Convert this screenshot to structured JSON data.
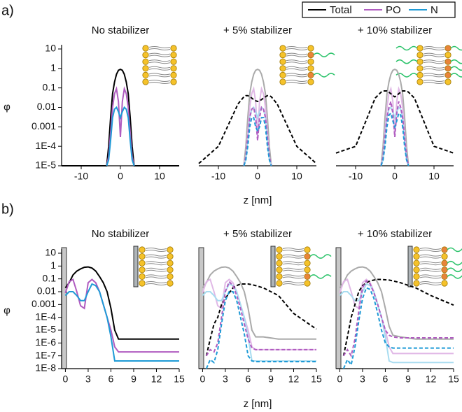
{
  "chart_data": [
    {
      "type": "line",
      "panel_label": "a)",
      "title": "No stabilizer",
      "ylabel": "φ",
      "log_y": true,
      "xlim": [
        -15,
        15
      ],
      "xticks": [
        -10,
        0,
        10
      ],
      "ylim": [
        1e-05,
        10
      ],
      "yticks": [
        10,
        1,
        0.1,
        0.01,
        0.001,
        {
          "value": 0.0001,
          "label": "1E-4"
        },
        {
          "value": 1e-05,
          "label": "1E-5"
        }
      ],
      "x": [
        -15,
        -10,
        -5,
        -3.5,
        -3,
        -2.5,
        -2,
        -1.5,
        -1,
        -0.5,
        0,
        0.5,
        1,
        1.5,
        2,
        2.5,
        3,
        3.5,
        5,
        10,
        15
      ],
      "series": [
        {
          "name": "Total",
          "color": "#000000",
          "dash": false,
          "values": [
            1e-05,
            1e-05,
            1e-05,
            1e-05,
            0.0001,
            0.003,
            0.05,
            0.2,
            0.5,
            0.8,
            0.9,
            0.8,
            0.5,
            0.2,
            0.05,
            0.003,
            0.0001,
            1e-05,
            1e-05,
            1e-05,
            1e-05
          ]
        },
        {
          "name": "PO",
          "color": "#b05cc0",
          "dash": false,
          "values": [
            null,
            null,
            null,
            1e-05,
            3e-05,
            0.0005,
            0.01,
            0.05,
            0.09,
            0.02,
            0.0003,
            0.02,
            0.09,
            0.05,
            0.01,
            0.0005,
            3e-05,
            1e-05,
            null,
            null,
            null
          ]
        },
        {
          "name": "N",
          "color": "#1e9ad6",
          "dash": false,
          "values": [
            null,
            null,
            null,
            1e-05,
            2e-05,
            0.0002,
            0.003,
            0.008,
            0.01,
            0.006,
            0.003,
            0.006,
            0.01,
            0.008,
            0.003,
            0.0002,
            2e-05,
            1e-05,
            null,
            null,
            null
          ]
        }
      ]
    },
    {
      "type": "line",
      "title": "+ 5% stabilizer",
      "xlabel": "z [nm]",
      "log_y": true,
      "xlim": [
        -15,
        15
      ],
      "xticks": [
        -10,
        0,
        10
      ],
      "ylim": [
        1e-05,
        10
      ],
      "x": [
        -15,
        -10,
        -5,
        -3.5,
        -3,
        -2.5,
        -2,
        -1.5,
        -1,
        -0.5,
        0,
        0.5,
        1,
        1.5,
        2,
        2.5,
        3,
        3.5,
        5,
        10,
        15
      ],
      "series": [
        {
          "color": "#aaaaaa",
          "dash": false,
          "values": [
            null,
            null,
            null,
            1e-05,
            0.0001,
            0.003,
            0.05,
            0.2,
            0.5,
            0.8,
            0.9,
            0.8,
            0.5,
            0.2,
            0.05,
            0.003,
            0.0001,
            1e-05,
            null,
            null,
            null
          ]
        },
        {
          "color": "#e0b8e6",
          "dash": false,
          "values": [
            null,
            null,
            null,
            1e-05,
            3e-05,
            0.0005,
            0.01,
            0.05,
            0.09,
            0.02,
            0.0003,
            0.02,
            0.09,
            0.05,
            0.01,
            0.0005,
            3e-05,
            1e-05,
            null,
            null,
            null
          ]
        },
        {
          "color": "#a8dcf0",
          "dash": false,
          "values": [
            null,
            null,
            null,
            1e-05,
            2e-05,
            0.0002,
            0.003,
            0.008,
            0.01,
            0.006,
            0.003,
            0.006,
            0.01,
            0.008,
            0.003,
            0.0002,
            2e-05,
            1e-05,
            null,
            null,
            null
          ]
        },
        {
          "color": "#000000",
          "dash": true,
          "values": [
            1.3e-05,
            0.0001,
            0.015,
            0.035,
            0.04,
            0.04,
            0.035,
            0.03,
            0.025,
            0.022,
            0.02,
            0.022,
            0.025,
            0.03,
            0.035,
            0.04,
            0.04,
            0.035,
            0.015,
            0.0001,
            1.3e-05
          ]
        },
        {
          "color": "#b05cc0",
          "dash": true,
          "values": [
            null,
            null,
            null,
            1e-05,
            3e-05,
            0.0003,
            0.003,
            0.008,
            0.01,
            0.003,
            0.0002,
            0.003,
            0.01,
            0.008,
            0.003,
            0.0003,
            3e-05,
            1e-05,
            null,
            null,
            null
          ]
        },
        {
          "color": "#1e9ad6",
          "dash": true,
          "values": [
            null,
            null,
            null,
            1e-05,
            2e-05,
            0.0001,
            0.001,
            0.003,
            0.003,
            0.001,
            0.0006,
            0.001,
            0.003,
            0.003,
            0.001,
            0.0001,
            2e-05,
            1e-05,
            null,
            null,
            null
          ]
        }
      ]
    },
    {
      "type": "line",
      "title": "+ 10% stabilizer",
      "log_y": true,
      "xlim": [
        -15,
        15
      ],
      "xticks": [
        -10,
        0,
        10
      ],
      "ylim": [
        1e-05,
        10
      ],
      "x": [
        -15,
        -10,
        -5,
        -3.5,
        -3,
        -2.5,
        -2,
        -1.5,
        -1,
        -0.5,
        0,
        0.5,
        1,
        1.5,
        2,
        2.5,
        3,
        3.5,
        5,
        10,
        15
      ],
      "series": [
        {
          "color": "#aaaaaa",
          "dash": false,
          "values": [
            null,
            null,
            null,
            1e-05,
            0.0001,
            0.003,
            0.05,
            0.2,
            0.5,
            0.8,
            0.9,
            0.8,
            0.5,
            0.2,
            0.05,
            0.003,
            0.0001,
            1e-05,
            null,
            null,
            null
          ]
        },
        {
          "color": "#e0b8e6",
          "dash": false,
          "values": [
            null,
            null,
            null,
            1e-05,
            3e-05,
            0.0005,
            0.01,
            0.05,
            0.09,
            0.02,
            0.0003,
            0.02,
            0.09,
            0.05,
            0.01,
            0.0005,
            3e-05,
            1e-05,
            null,
            null,
            null
          ]
        },
        {
          "color": "#a8dcf0",
          "dash": false,
          "values": [
            null,
            null,
            null,
            1e-05,
            2e-05,
            0.0002,
            0.003,
            0.008,
            0.01,
            0.006,
            0.003,
            0.006,
            0.01,
            0.008,
            0.003,
            0.0002,
            2e-05,
            1e-05,
            null,
            null,
            null
          ]
        },
        {
          "color": "#000000",
          "dash": true,
          "values": [
            4.5e-05,
            0.0001,
            0.03,
            0.06,
            0.07,
            0.07,
            0.07,
            0.06,
            0.05,
            0.04,
            0.035,
            0.04,
            0.05,
            0.06,
            0.07,
            0.07,
            0.07,
            0.06,
            0.03,
            0.0001,
            4.5e-05
          ]
        },
        {
          "color": "#b05cc0",
          "dash": true,
          "values": [
            null,
            null,
            null,
            1e-05,
            3e-05,
            0.0003,
            0.003,
            0.01,
            0.02,
            0.005,
            0.0003,
            0.005,
            0.02,
            0.01,
            0.003,
            0.0003,
            3e-05,
            1e-05,
            null,
            null,
            null
          ]
        },
        {
          "color": "#1e9ad6",
          "dash": true,
          "values": [
            null,
            null,
            null,
            1e-05,
            2e-05,
            0.0001,
            0.001,
            0.004,
            0.005,
            0.002,
            0.001,
            0.002,
            0.005,
            0.004,
            0.001,
            0.0001,
            2e-05,
            1e-05,
            null,
            null,
            null
          ]
        }
      ]
    },
    {
      "type": "line",
      "panel_label": "b)",
      "title": "No stabilizer",
      "ylabel": "φ",
      "log_y": true,
      "wall": true,
      "xlim": [
        -0.5,
        15
      ],
      "xticks": [
        0,
        3,
        6,
        9,
        12,
        15
      ],
      "ylim": [
        1e-08,
        10
      ],
      "yticks": [
        10,
        1,
        0.1,
        0.01,
        0.001,
        {
          "value": 0.0001,
          "label": "1E-4"
        },
        {
          "value": 1e-05,
          "label": "1E-5"
        },
        {
          "value": 1e-06,
          "label": "1E-6"
        },
        {
          "value": 1e-07,
          "label": "1E-7"
        },
        {
          "value": 1e-08,
          "label": "1E-8"
        }
      ],
      "x": [
        0,
        0.5,
        1,
        1.5,
        2,
        2.5,
        3,
        3.5,
        4,
        4.5,
        5,
        5.5,
        6,
        6.5,
        7,
        8,
        10,
        12,
        15
      ],
      "series": [
        {
          "color": "#000000",
          "dash": false,
          "values": [
            0.02,
            0.05,
            0.2,
            0.4,
            0.6,
            0.8,
            0.85,
            0.7,
            0.4,
            0.15,
            0.05,
            0.01,
            0.0005,
            1e-05,
            2e-06,
            2e-06,
            2e-06,
            2e-06,
            2e-06
          ]
        },
        {
          "color": "#b05cc0",
          "dash": false,
          "values": [
            0.008,
            0.06,
            0.09,
            0.01,
            0.0008,
            0.0005,
            0.05,
            0.09,
            0.05,
            0.01,
            0.001,
            0.0001,
            1e-05,
            5e-07,
            2e-07,
            2e-07,
            2e-07,
            2e-07,
            2e-07
          ]
        },
        {
          "color": "#1e9ad6",
          "dash": false,
          "values": [
            0.005,
            0.01,
            0.01,
            0.005,
            0.002,
            0.002,
            0.01,
            0.04,
            0.03,
            0.01,
            0.001,
            0.0001,
            3e-06,
            4e-08,
            4e-08,
            4e-08,
            4e-08,
            4e-08,
            4e-08
          ]
        }
      ]
    },
    {
      "type": "line",
      "title": "+ 5% stabilizer",
      "xlabel": "z [nm]",
      "log_y": true,
      "wall": true,
      "xlim": [
        -0.5,
        15
      ],
      "xticks": [
        0,
        3,
        6,
        9,
        12,
        15
      ],
      "ylim": [
        1e-08,
        10
      ],
      "x": [
        0,
        0.5,
        1,
        1.5,
        2,
        2.5,
        3,
        3.5,
        4,
        4.5,
        5,
        5.5,
        6,
        6.5,
        7,
        8,
        10,
        12,
        15
      ],
      "series": [
        {
          "color": "#aaaaaa",
          "dash": false,
          "values": [
            0.02,
            0.05,
            0.2,
            0.4,
            0.6,
            0.8,
            0.85,
            0.7,
            0.4,
            0.15,
            0.05,
            0.01,
            0.0005,
            1e-05,
            3e-06,
            3e-06,
            2e-06,
            2e-06,
            2e-06
          ]
        },
        {
          "color": "#e0b8e6",
          "dash": false,
          "values": [
            0.008,
            0.06,
            0.09,
            0.01,
            0.0008,
            0.0005,
            0.05,
            0.09,
            0.05,
            0.01,
            0.001,
            0.0001,
            1e-05,
            5e-07,
            3e-07,
            3e-07,
            3e-07,
            3e-07,
            3e-07
          ]
        },
        {
          "color": "#a8dcf0",
          "dash": false,
          "values": [
            0.005,
            0.01,
            0.01,
            0.005,
            0.002,
            0.002,
            0.01,
            0.04,
            0.03,
            0.01,
            0.001,
            0.0001,
            3e-06,
            4e-08,
            4e-08,
            4e-08,
            4e-08,
            4e-08,
            4e-08
          ]
        },
        {
          "color": "#000000",
          "dash": true,
          "values": [
            null,
            1e-07,
            2e-06,
            3e-05,
            0.0001,
            0.001,
            0.003,
            0.008,
            0.02,
            0.03,
            0.04,
            0.04,
            0.04,
            0.035,
            0.03,
            0.02,
            0.005,
            0.0002,
            1.2e-05
          ]
        },
        {
          "color": "#b05cc0",
          "dash": true,
          "values": [
            null,
            1e-07,
            3e-07,
            2e-07,
            1e-06,
            0.0001,
            0.01,
            0.06,
            0.03,
            0.005,
            0.0005,
            3e-05,
            2e-06,
            4e-07,
            3e-07,
            3e-07,
            3e-07,
            3e-07,
            3e-07
          ]
        },
        {
          "color": "#1e9ad6",
          "dash": true,
          "values": [
            null,
            1e-08,
            5e-08,
            3e-08,
            3e-07,
            3e-05,
            0.002,
            0.01,
            0.01,
            0.002,
            0.0001,
            5e-06,
            1e-07,
            4e-08,
            3.5e-08,
            3.5e-08,
            3.5e-08,
            3.5e-08,
            3.5e-08
          ]
        }
      ]
    },
    {
      "type": "line",
      "title": "+ 10% stabilizer",
      "log_y": true,
      "wall": true,
      "xlim": [
        -0.5,
        15
      ],
      "xticks": [
        0,
        3,
        6,
        9,
        12,
        15
      ],
      "ylim": [
        1e-08,
        10
      ],
      "x": [
        0,
        0.5,
        1,
        1.5,
        2,
        2.5,
        3,
        3.5,
        4,
        4.5,
        5,
        5.5,
        6,
        6.5,
        7,
        8,
        10,
        12,
        15
      ],
      "series": [
        {
          "color": "#aaaaaa",
          "dash": false,
          "values": [
            0.02,
            0.05,
            0.2,
            0.4,
            0.6,
            0.8,
            0.85,
            0.7,
            0.4,
            0.15,
            0.05,
            0.01,
            0.0005,
            2e-05,
            4e-06,
            3e-06,
            2e-06,
            2e-06,
            2e-06
          ]
        },
        {
          "color": "#e0b8e6",
          "dash": false,
          "values": [
            0.008,
            0.06,
            0.09,
            0.01,
            0.0008,
            0.0005,
            0.05,
            0.09,
            0.05,
            0.01,
            0.001,
            0.0001,
            1e-05,
            5e-07,
            1.5e-07,
            1.5e-07,
            1.5e-07,
            1.5e-07,
            1.5e-07
          ]
        },
        {
          "color": "#a8dcf0",
          "dash": false,
          "values": [
            0.005,
            0.01,
            0.01,
            0.005,
            0.002,
            0.002,
            0.01,
            0.04,
            0.03,
            0.01,
            0.001,
            0.0001,
            3e-06,
            4e-08,
            3e-08,
            3e-08,
            3e-08,
            3e-08,
            3e-08
          ]
        },
        {
          "color": "#000000",
          "dash": true,
          "values": [
            null,
            1e-07,
            3e-06,
            0.0001,
            0.001,
            0.01,
            0.03,
            0.05,
            0.07,
            0.08,
            0.09,
            0.09,
            0.085,
            0.08,
            0.07,
            0.05,
            0.02,
            0.005,
            0.0009
          ]
        },
        {
          "color": "#b05cc0",
          "dash": true,
          "values": [
            null,
            1e-07,
            3e-07,
            1e-07,
            2e-06,
            0.0003,
            0.02,
            0.07,
            0.04,
            0.008,
            0.001,
            0.0001,
            1e-05,
            4e-06,
            3e-06,
            2.5e-06,
            2.5e-06,
            2.5e-06,
            2.5e-06
          ]
        },
        {
          "color": "#1e9ad6",
          "dash": true,
          "values": [
            null,
            1e-08,
            5e-08,
            2e-08,
            5e-07,
            5e-05,
            0.003,
            0.02,
            0.015,
            0.003,
            0.0002,
            1e-05,
            1e-06,
            5e-07,
            4e-07,
            4e-07,
            4e-07,
            4e-07,
            4e-07
          ]
        }
      ]
    }
  ]
}
